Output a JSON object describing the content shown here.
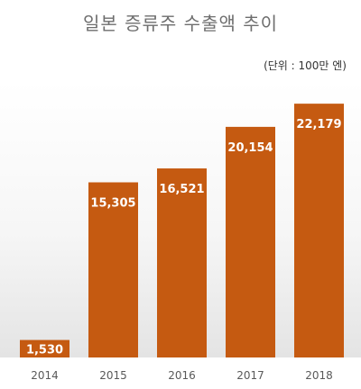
{
  "chart_data": {
    "type": "bar",
    "title": "일본 증류주 수출액 추이",
    "unit_note": "(단위 : 100만 엔)",
    "categories": [
      "2014",
      "2015",
      "2016",
      "2017",
      "2018"
    ],
    "values": [
      1530,
      15305,
      16521,
      20154,
      22179
    ],
    "value_labels": [
      "1,530",
      "15,305",
      "16,521",
      "20,154",
      "22,179"
    ],
    "ylim": [
      0,
      24000
    ],
    "grid": false,
    "legend": "none",
    "colors": {
      "bar": "#c55a11",
      "label": "#ffffff",
      "tick": "#595959",
      "floor": "#d9d9d9"
    }
  }
}
